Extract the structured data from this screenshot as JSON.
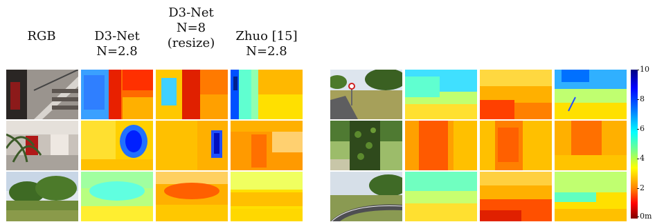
{
  "headers": {
    "rgb": "RGB",
    "d3net_28": "D3-Net\nN=2.8",
    "d3net_8": "D3-Net\nN=8\n(resize)",
    "zhuo": "Zhuo [15]\nN=2.8"
  },
  "colorbar": {
    "ticks": [
      "10",
      "8",
      "6",
      "4",
      "2",
      "0m"
    ],
    "colors": [
      "#00007f",
      "#0000ff",
      "#0080ff",
      "#00ffff",
      "#ffff00",
      "#ff8000",
      "#ff0000",
      "#7f0000"
    ]
  },
  "icons": {
    "rgb_photo": "photo-icon",
    "depth_map": "depth-map-icon"
  }
}
